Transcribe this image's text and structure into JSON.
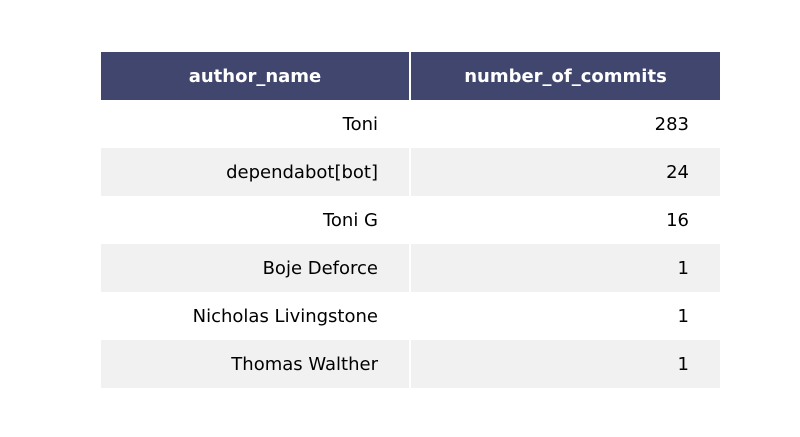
{
  "colors": {
    "header_bg": "#40466e",
    "header_text": "#ffffff",
    "row_even": "#ffffff",
    "row_odd": "#f1f1f1"
  },
  "chart_data": {
    "type": "table",
    "columns": [
      "author_name",
      "number_of_commits"
    ],
    "rows": [
      [
        "Toni",
        "283"
      ],
      [
        "dependabot[bot]",
        "24"
      ],
      [
        "Toni G",
        "16"
      ],
      [
        "Boje Deforce",
        "1"
      ],
      [
        "Nicholas Livingstone",
        "1"
      ],
      [
        "Thomas Walther",
        "1"
      ]
    ]
  }
}
